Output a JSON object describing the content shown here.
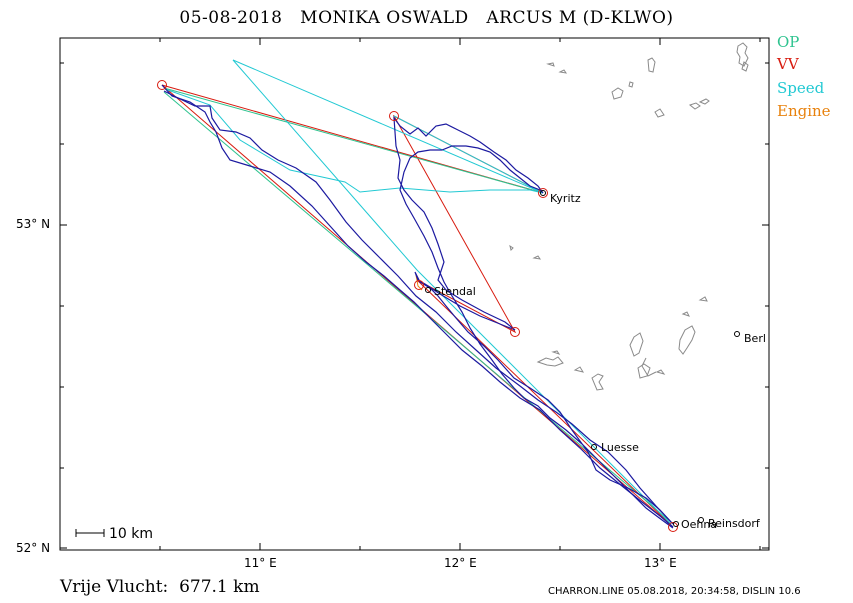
{
  "header": {
    "date": "05-08-2018",
    "pilot": "MONIKA OSWALD",
    "aircraft": "ARCUS M (D-KLWO)"
  },
  "legend": [
    {
      "label": "OP",
      "color": "#2ec38f"
    },
    {
      "label": "VV",
      "color": "#d81b0f"
    },
    {
      "label": "Speed",
      "color": "#22c9d3"
    },
    {
      "label": "Engine",
      "color": "#e8820e"
    }
  ],
  "axes": {
    "lon_ticks": [
      "11° E",
      "12° E",
      "13° E"
    ],
    "lat_ticks": [
      "52° N",
      "53° N"
    ]
  },
  "towns": [
    "Kyritz",
    "Stendal",
    "Luesse",
    "Oehna",
    "Reinsdorf",
    "Berl"
  ],
  "scale_bar": "10 km",
  "distance": "Vrije Vlucht:  677.1 km",
  "footer": "CHARRON.LINE 05.08.2018, 20:34:58, DISLIN 10.6",
  "colors": {
    "track": "#1c1aa0",
    "coast": "#8a8a8a",
    "frame": "#000000"
  }
}
